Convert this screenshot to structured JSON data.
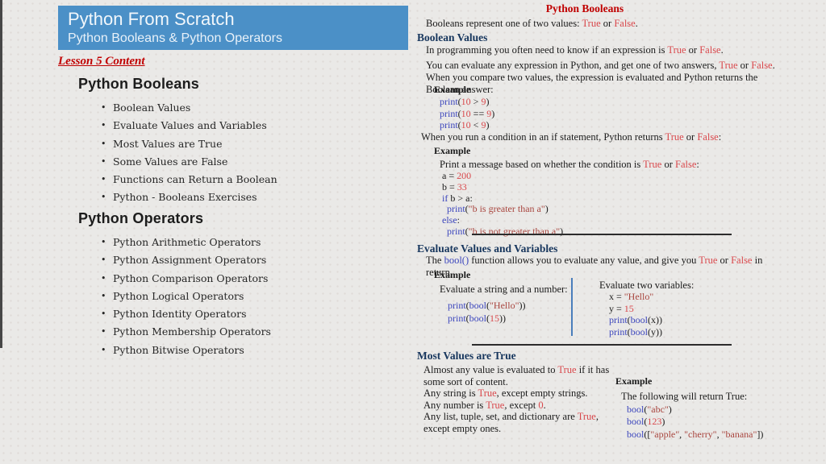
{
  "header": {
    "title": "Python From Scratch",
    "subtitle": "Python Booleans & Python Operators"
  },
  "outline": {
    "lesson_label": "Lesson 5 Content",
    "sections": [
      {
        "heading": "Python Booleans",
        "items": [
          "Boolean Values",
          "Evaluate Values and Variables",
          "Most Values are True",
          "Some Values are False",
          "Functions can Return a Boolean",
          "Python - Booleans Exercises"
        ]
      },
      {
        "heading": "Python Operators",
        "items": [
          "Python Arithmetic Operators",
          "Python Assignment Operators",
          "Python Comparison Operators",
          "Python Logical Operators",
          "Python Identity Operators",
          "Python Membership Operators",
          "Python Bitwise Operators"
        ]
      }
    ]
  },
  "content": {
    "title": "Python Booleans",
    "intro": [
      {
        "t": "Booleans represent one of two values: "
      },
      {
        "t": "True",
        "c": "red"
      },
      {
        "t": " or "
      },
      {
        "t": "False",
        "c": "red"
      },
      {
        "t": "."
      }
    ],
    "boolean_values": {
      "heading": "Boolean Values",
      "paragraphs": [
        [
          {
            "t": "In programming you often need to know if an expression is "
          },
          {
            "t": "True",
            "c": "red"
          },
          {
            "t": " or "
          },
          {
            "t": "False",
            "c": "red"
          },
          {
            "t": "."
          }
        ],
        [
          {
            "t": "You can evaluate any expression in Python, and get one of two answers, "
          },
          {
            "t": "True",
            "c": "red"
          },
          {
            "t": " or "
          },
          {
            "t": "False",
            "c": "red"
          },
          {
            "t": "."
          }
        ],
        [
          {
            "t": "When you compare two values, the expression is evaluated and Python returns the Boolean answer:"
          }
        ]
      ],
      "example1": {
        "label": "Example",
        "code": [
          [
            {
              "t": "print",
              "c": "kw"
            },
            {
              "t": "("
            },
            {
              "t": "10",
              "c": "num"
            },
            {
              "t": " > "
            },
            {
              "t": "9",
              "c": "num"
            },
            {
              "t": ")"
            }
          ],
          [
            {
              "t": "print",
              "c": "kw"
            },
            {
              "t": "("
            },
            {
              "t": "10",
              "c": "num"
            },
            {
              "t": " == "
            },
            {
              "t": "9",
              "c": "num"
            },
            {
              "t": ")"
            }
          ],
          [
            {
              "t": "print",
              "c": "kw"
            },
            {
              "t": "("
            },
            {
              "t": "10",
              "c": "num"
            },
            {
              "t": " < "
            },
            {
              "t": "9",
              "c": "num"
            },
            {
              "t": ")"
            }
          ]
        ]
      },
      "if_note": [
        {
          "t": "When you run a condition in an if statement, Python returns "
        },
        {
          "t": "True",
          "c": "red"
        },
        {
          "t": " or "
        },
        {
          "t": "False",
          "c": "red"
        },
        {
          "t": ":"
        }
      ],
      "example2": {
        "label": "Example",
        "caption": [
          {
            "t": "Print a message based on whether the condition is "
          },
          {
            "t": "True",
            "c": "red"
          },
          {
            "t": " or "
          },
          {
            "t": "False",
            "c": "red"
          },
          {
            "t": ":"
          }
        ],
        "code": [
          [
            {
              "t": "a = "
            },
            {
              "t": "200",
              "c": "num"
            }
          ],
          [
            {
              "t": "b = "
            },
            {
              "t": "33",
              "c": "num"
            }
          ],
          [
            {
              "t": "if",
              "c": "kw"
            },
            {
              "t": " b > a:"
            }
          ],
          [
            {
              "t": "  "
            },
            {
              "t": "print",
              "c": "kw"
            },
            {
              "t": "("
            },
            {
              "t": "\"b is greater than a\"",
              "c": "str"
            },
            {
              "t": ")"
            }
          ],
          [
            {
              "t": "else",
              "c": "kw"
            },
            {
              "t": ":"
            }
          ],
          [
            {
              "t": "  "
            },
            {
              "t": "print",
              "c": "kw"
            },
            {
              "t": "("
            },
            {
              "t": "\"b is not greater than a\"",
              "c": "str"
            },
            {
              "t": ")"
            }
          ]
        ]
      }
    },
    "evaluate": {
      "heading": "Evaluate Values and Variables",
      "paragraph": [
        {
          "t": "The "
        },
        {
          "t": "bool()",
          "c": "kw"
        },
        {
          "t": " function allows you to evaluate any value, and give you "
        },
        {
          "t": "True",
          "c": "red"
        },
        {
          "t": " or "
        },
        {
          "t": "False",
          "c": "red"
        },
        {
          "t": " in return,"
        }
      ],
      "example_label": "Example",
      "left": {
        "caption": "Evaluate a string and a number:",
        "code": [
          [
            {
              "t": "print",
              "c": "kw"
            },
            {
              "t": "("
            },
            {
              "t": "bool",
              "c": "kw"
            },
            {
              "t": "("
            },
            {
              "t": "\"Hello\"",
              "c": "str"
            },
            {
              "t": "))"
            }
          ],
          [
            {
              "t": "print",
              "c": "kw"
            },
            {
              "t": "("
            },
            {
              "t": "bool",
              "c": "kw"
            },
            {
              "t": "("
            },
            {
              "t": "15",
              "c": "num"
            },
            {
              "t": "))"
            }
          ]
        ]
      },
      "right": {
        "caption": "Evaluate two variables:",
        "code": [
          [
            {
              "t": "x = "
            },
            {
              "t": "\"Hello\"",
              "c": "str"
            }
          ],
          [
            {
              "t": "y = "
            },
            {
              "t": "15",
              "c": "num"
            }
          ],
          [
            {
              "t": "print",
              "c": "kw"
            },
            {
              "t": "("
            },
            {
              "t": "bool",
              "c": "kw"
            },
            {
              "t": "(x))"
            }
          ],
          [
            {
              "t": "print",
              "c": "kw"
            },
            {
              "t": "("
            },
            {
              "t": "bool",
              "c": "kw"
            },
            {
              "t": "(y))"
            }
          ]
        ]
      }
    },
    "most_true": {
      "heading": "Most Values are True",
      "paragraphs": [
        [
          {
            "t": "Almost any value is evaluated to "
          },
          {
            "t": "True",
            "c": "red"
          },
          {
            "t": " if it has some sort of content."
          }
        ],
        [
          {
            "t": "Any string is "
          },
          {
            "t": "True",
            "c": "red"
          },
          {
            "t": ", except empty strings."
          }
        ],
        [
          {
            "t": "Any number is "
          },
          {
            "t": "True",
            "c": "red"
          },
          {
            "t": ", except "
          },
          {
            "t": "0",
            "c": "num"
          },
          {
            "t": "."
          }
        ],
        [
          {
            "t": "Any list, tuple, set, and dictionary are "
          },
          {
            "t": "True",
            "c": "red"
          },
          {
            "t": ", except empty ones."
          }
        ]
      ],
      "example": {
        "label": "Example",
        "caption": "The following will return True:",
        "code": [
          [
            {
              "t": "bool",
              "c": "kw"
            },
            {
              "t": "("
            },
            {
              "t": "\"abc\"",
              "c": "str"
            },
            {
              "t": ")"
            }
          ],
          [
            {
              "t": "bool",
              "c": "kw"
            },
            {
              "t": "("
            },
            {
              "t": "123",
              "c": "num"
            },
            {
              "t": ")"
            }
          ],
          [
            {
              "t": "bool",
              "c": "kw"
            },
            {
              "t": "(["
            },
            {
              "t": "\"apple\"",
              "c": "str"
            },
            {
              "t": ", "
            },
            {
              "t": "\"cherry\"",
              "c": "str"
            },
            {
              "t": ", "
            },
            {
              "t": "\"banana\"",
              "c": "str"
            },
            {
              "t": "])"
            }
          ]
        ]
      }
    }
  },
  "colors": {
    "background": "#eae9e7",
    "header_blue": "#4b90c7",
    "heading_navy": "#17365d",
    "title_red": "#c00000",
    "true_false_red": "#d9484c",
    "keyword_blue": "#3b45bc",
    "string_maroon": "#a8453e",
    "divider_blue": "#4a7ebb"
  }
}
